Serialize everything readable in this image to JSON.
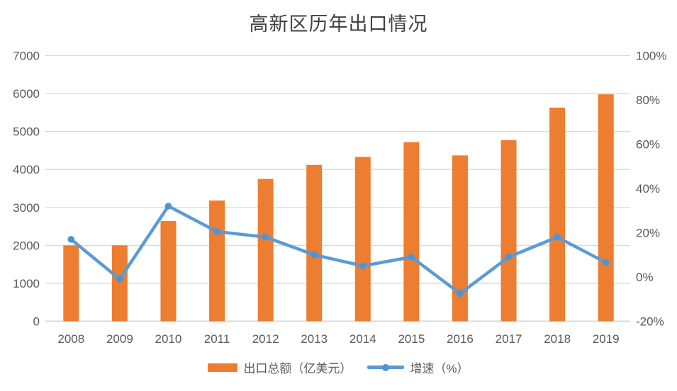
{
  "title": "高新区历年出口情况",
  "colors": {
    "bar": "#ED7D31",
    "line": "#5B9BD5",
    "marker": "#4F93D1",
    "grid": "#D9D9D9",
    "axis_text": "#595959",
    "title_text": "#404040",
    "background": "#FFFFFF"
  },
  "chart_data": {
    "type": "combo",
    "title": "高新区历年出口情况",
    "categories": [
      "2008",
      "2009",
      "2010",
      "2011",
      "2012",
      "2013",
      "2014",
      "2015",
      "2016",
      "2017",
      "2018",
      "2019"
    ],
    "series": [
      {
        "name": "出口总额（亿美元）",
        "type": "bar",
        "axis": "left",
        "color": "#ED7D31",
        "values": [
          2000,
          2000,
          2640,
          3180,
          3750,
          4120,
          4330,
          4720,
          4370,
          4770,
          5630,
          5980
        ]
      },
      {
        "name": "增速（%）",
        "type": "line",
        "axis": "right",
        "color": "#5B9BD5",
        "values": [
          17,
          -1,
          32,
          20.5,
          18,
          10,
          5,
          9,
          -7.5,
          9,
          18,
          6.5
        ]
      }
    ],
    "left_axis": {
      "min": 0,
      "max": 7000,
      "step": 1000,
      "tick_labels": [
        "0",
        "1000",
        "2000",
        "3000",
        "4000",
        "5000",
        "6000",
        "7000"
      ]
    },
    "right_axis": {
      "min": -20,
      "max": 100,
      "step": 20,
      "tick_labels": [
        "-20%",
        "0%",
        "20%",
        "40%",
        "60%",
        "80%",
        "100%"
      ]
    },
    "grid": "horizontal",
    "legend_position": "bottom"
  }
}
